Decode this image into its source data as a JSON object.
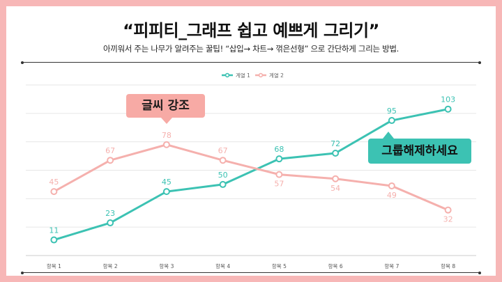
{
  "header": {
    "title": "“피피티_그래프 쉽고 예쁘게 그리기”",
    "subtitle": "아끼워서 주는 나무가 알려주는 꿀팁! “삽입→ 차트→ 꺾은선형” 으로 간단하게 그리는 방법."
  },
  "callouts": {
    "emphasis": "글씨 강조",
    "ungroup": "그룹해제하세요"
  },
  "colors": {
    "series1": "#3cc2b3",
    "series2": "#f5b0ad",
    "frame": "#f7b7b7",
    "grid": "#e6e6e6"
  },
  "chart_data": {
    "type": "line",
    "title": "",
    "xlabel": "",
    "ylabel": "",
    "categories": [
      "항목 1",
      "항목 2",
      "항목 3",
      "항목 4",
      "항목 5",
      "항목 6",
      "항목 7",
      "항목 8"
    ],
    "series": [
      {
        "name": "계열 1",
        "values": [
          11,
          23,
          45,
          50,
          68,
          72,
          95,
          103
        ]
      },
      {
        "name": "계열 2",
        "values": [
          45,
          67,
          78,
          67,
          57,
          54,
          49,
          32
        ]
      }
    ],
    "ylim": [
      0,
      120
    ],
    "grid": true,
    "legend": "top-center",
    "data_labels": true,
    "markers": "hollow-circle"
  }
}
